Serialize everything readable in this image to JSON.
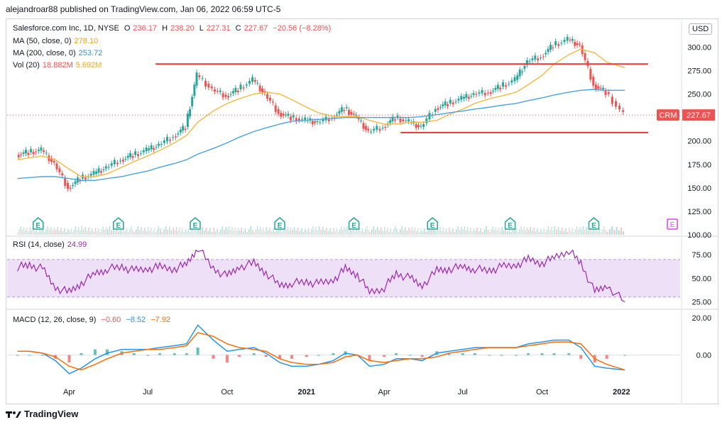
{
  "header": {
    "publisher": "alejandroar88 published on TradingView.com, Jan 06, 2022 06:59 UTC-5"
  },
  "footer": {
    "brand": "TradingView"
  },
  "price_panel": {
    "symbol_line": "Salesforce.com Inc, 1D, NYSE",
    "ohlc": {
      "O_label": "O",
      "O": "236.17",
      "H_label": "H",
      "H": "238.20",
      "L_label": "L",
      "L": "227.31",
      "C_label": "C",
      "C": "227.67",
      "change": "−20.56 (−8.28%)"
    },
    "ma50": {
      "label": "MA (50, close, 0)",
      "value": "278.10"
    },
    "ma200": {
      "label": "MA (200, close, 0)",
      "value": "253.72"
    },
    "vol": {
      "label": "Vol (20)",
      "value1": "18.882M",
      "value2": "5.692M"
    },
    "currency": "USD",
    "last_price_tag": "227.67",
    "ticker_tag": "CRM",
    "earnings_marker": "E"
  },
  "rsi_panel": {
    "label": "RSI (14, close)",
    "value": "24.99"
  },
  "macd_panel": {
    "label": "MACD (12, 26, close, 9)",
    "v1": "−0.60",
    "v2": "−8.52",
    "v3": "−7.92"
  },
  "colors": {
    "up": "#26a69a",
    "down": "#ef5350",
    "ma50": "#f5b942",
    "ma200": "#4aa3e0",
    "rsi": "#9c27b0",
    "rsi_band": "#ede0f7",
    "level": "#e53935",
    "macd": "#2196f3",
    "signal": "#ff6d00"
  },
  "chart_data": [
    {
      "type": "line",
      "title": "Salesforce.com Inc, 1D, NYSE",
      "x_ticks": [
        "Apr",
        "Jul",
        "Oct",
        "2021",
        "Apr",
        "Jul",
        "Oct",
        "2022"
      ],
      "y_ticks": [
        "100.00",
        "125.00",
        "150.00",
        "175.00",
        "200.00",
        "225.00",
        "250.00",
        "275.00",
        "300.00"
      ],
      "ylim": [
        100,
        317
      ],
      "x": [
        "2020-02-01",
        "2020-02-15",
        "2020-03-01",
        "2020-03-16",
        "2020-04-01",
        "2020-04-15",
        "2020-05-01",
        "2020-05-15",
        "2020-06-01",
        "2020-06-15",
        "2020-07-01",
        "2020-07-15",
        "2020-08-01",
        "2020-08-15",
        "2020-08-28",
        "2020-09-15",
        "2020-10-01",
        "2020-10-15",
        "2020-11-01",
        "2020-11-15",
        "2020-12-01",
        "2020-12-15",
        "2021-01-01",
        "2021-01-15",
        "2021-02-01",
        "2021-02-15",
        "2021-03-01",
        "2021-03-15",
        "2021-04-01",
        "2021-04-15",
        "2021-05-01",
        "2021-05-15",
        "2021-06-01",
        "2021-06-15",
        "2021-07-01",
        "2021-07-15",
        "2021-08-01",
        "2021-08-15",
        "2021-09-01",
        "2021-09-15",
        "2021-10-01",
        "2021-10-15",
        "2021-11-01",
        "2021-11-15",
        "2021-12-01",
        "2021-12-15",
        "2022-01-05"
      ],
      "series": [
        {
          "name": "CRM",
          "values": [
            185,
            188,
            190,
            176,
            150,
            160,
            165,
            172,
            180,
            185,
            190,
            196,
            205,
            215,
            270,
            255,
            248,
            255,
            265,
            250,
            230,
            225,
            222,
            220,
            225,
            235,
            225,
            210,
            215,
            225,
            220,
            215,
            235,
            240,
            245,
            250,
            252,
            258,
            265,
            285,
            290,
            302,
            308,
            302,
            260,
            252,
            228
          ]
        },
        {
          "name": "MA (50, close, 0)",
          "values": [
            180,
            182,
            184,
            180,
            170,
            162,
            162,
            165,
            172,
            178,
            184,
            190,
            198,
            206,
            220,
            232,
            240,
            245,
            250,
            252,
            250,
            244,
            236,
            230,
            226,
            226,
            226,
            222,
            218,
            218,
            220,
            220,
            222,
            228,
            234,
            240,
            245,
            248,
            252,
            260,
            270,
            282,
            292,
            298,
            294,
            284,
            278
          ]
        },
        {
          "name": "MA (200, close, 0)",
          "values": [
            160,
            161,
            162,
            162,
            160,
            158,
            158,
            160,
            162,
            165,
            168,
            172,
            176,
            180,
            186,
            192,
            198,
            204,
            210,
            214,
            218,
            221,
            222,
            223,
            224,
            225,
            225,
            225,
            225,
            225,
            225,
            226,
            228,
            230,
            232,
            234,
            236,
            238,
            240,
            243,
            246,
            249,
            252,
            254,
            255,
            254,
            254
          ]
        }
      ],
      "levels": [
        282,
        209
      ],
      "earnings": [
        "2020-02-25",
        "2020-05-28",
        "2020-08-25",
        "2020-12-01",
        "2021-02-25",
        "2021-05-27",
        "2021-08-25",
        "2021-11-30",
        "2022-03-01"
      ]
    },
    {
      "type": "line",
      "title": "RSI (14, close)",
      "y_ticks": [
        "25.00",
        "50.00",
        "75.00"
      ],
      "ylim": [
        20,
        85
      ],
      "band": [
        30,
        70
      ],
      "values": [
        62,
        64,
        60,
        40,
        35,
        45,
        55,
        60,
        62,
        58,
        60,
        62,
        60,
        65,
        83,
        60,
        52,
        62,
        66,
        56,
        42,
        45,
        46,
        44,
        48,
        60,
        54,
        35,
        40,
        55,
        50,
        42,
        58,
        60,
        62,
        60,
        58,
        62,
        64,
        70,
        66,
        72,
        80,
        66,
        35,
        42,
        25
      ]
    },
    {
      "type": "line",
      "title": "MACD (12, 26, close, 9)",
      "y_ticks": [
        "0.00",
        "20.00"
      ],
      "ylim": [
        -15,
        23
      ],
      "macd": [
        2,
        2,
        1,
        -3,
        -10,
        -7,
        -2,
        1,
        3,
        3,
        3,
        4,
        5,
        6,
        16,
        8,
        2,
        3,
        4,
        1,
        -4,
        -6,
        -6,
        -5,
        -3,
        1,
        0,
        -6,
        -5,
        -2,
        -2,
        -3,
        1,
        2,
        3,
        4,
        4,
        4,
        4,
        6,
        7,
        8,
        8,
        4,
        -6,
        -7,
        -8
      ],
      "signal": [
        2,
        2,
        1,
        -1,
        -6,
        -8,
        -5,
        -2,
        1,
        2,
        3,
        3,
        4,
        5,
        12,
        10,
        6,
        4,
        3,
        2,
        -2,
        -4,
        -5,
        -5,
        -4,
        -1,
        0,
        -3,
        -4,
        -3,
        -2,
        -2,
        -1,
        1,
        2,
        3,
        4,
        4,
        4,
        5,
        6,
        7,
        7,
        6,
        -2,
        -5,
        -8
      ]
    }
  ]
}
